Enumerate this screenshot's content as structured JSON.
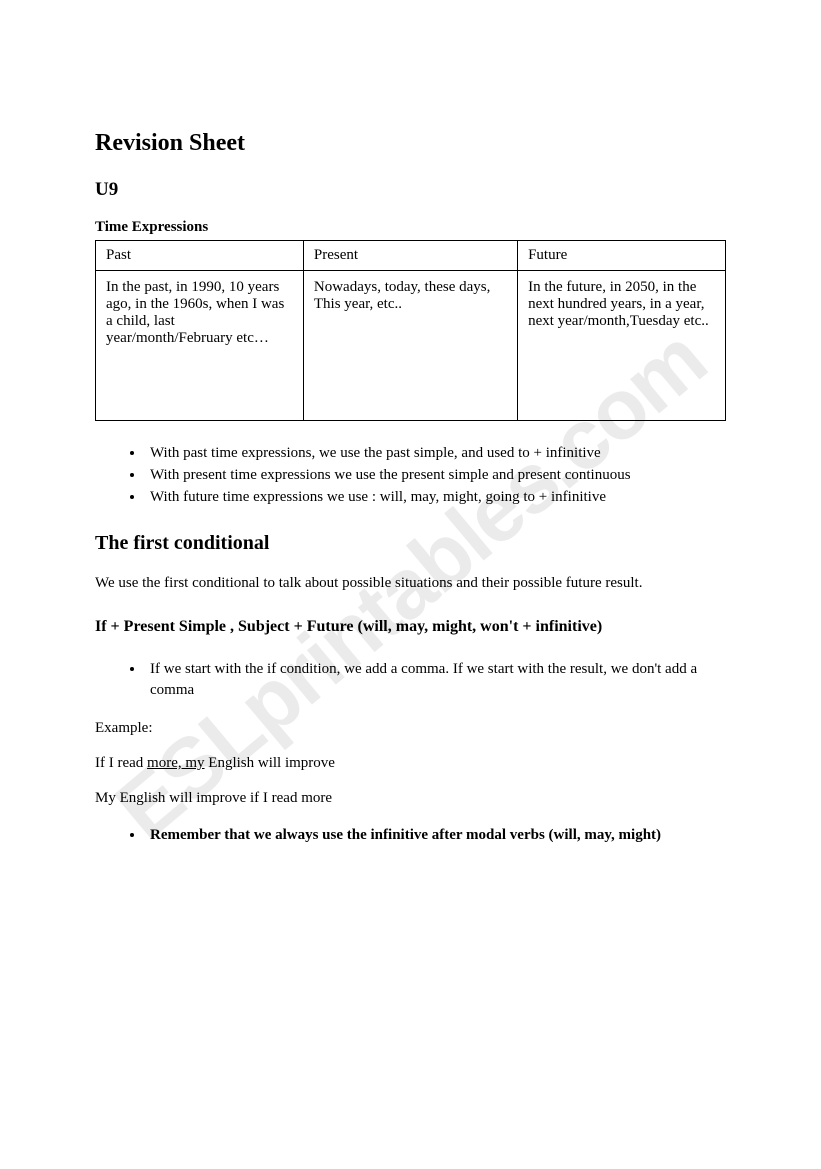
{
  "watermark": "ESLprintables.com",
  "title": "Revision Sheet",
  "unit": "U9",
  "section_label": "Time Expressions",
  "table": {
    "headers": {
      "col1": "Past",
      "col2": "Present",
      "col3": "Future"
    },
    "cells": {
      "past": "In the past, in 1990, 10 years ago, in the 1960s, when I was a child, last year/month/February etc…",
      "present": "Nowadays, today, these days, This year, etc..",
      "future": "In the future, in 2050, in the next hundred years, in a year, next year/month,Tuesday etc.."
    },
    "column_widths": [
      "33%",
      "34%",
      "33%"
    ]
  },
  "rules": {
    "item1": "With past time expressions, we use the past simple, and used to + infinitive",
    "item2": "With present time expressions we use the present simple and present continuous",
    "item3": "With future time expressions we use : will, may, might, going to + infinitive"
  },
  "conditional": {
    "title": "The first conditional",
    "intro": "We use the first conditional to talk about possible situations and their possible future result.",
    "formula": "If + Present Simple , Subject + Future (will, may, might, won't + infinitive)",
    "comma_rule": "If we start with the if condition, we add a comma. If we start with the result, we don't add a comma",
    "example_label": "Example:",
    "example1_prefix": "If I read ",
    "example1_underlined": "more, my",
    "example1_suffix": " English will improve",
    "example2": "My English will improve if I read more",
    "remember": "Remember that we always use the infinitive after modal verbs (will, may, might)"
  }
}
